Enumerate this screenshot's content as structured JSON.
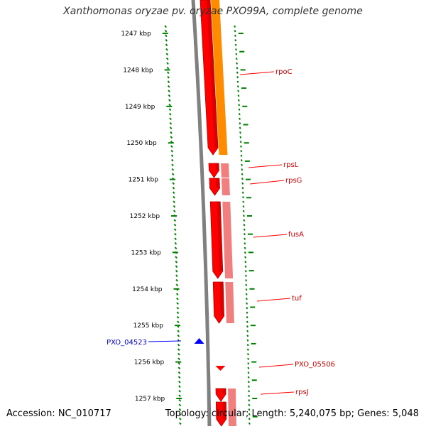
{
  "map": {
    "title": "Xanthomonas oryzae pv. oryzae PXO99A, complete genome",
    "accession": "Accession: NC_010717",
    "summary": "Topology: circular; Length: 5,240,075 bp; Genes: 5,048"
  },
  "ruler": {
    "ticks": [
      {
        "label": "1247 kbp",
        "kbp": 1247
      },
      {
        "label": "1248 kbp",
        "kbp": 1248
      },
      {
        "label": "1249 kbp",
        "kbp": 1249
      },
      {
        "label": "1250 kbp",
        "kbp": 1250
      },
      {
        "label": "1251 kbp",
        "kbp": 1251
      },
      {
        "label": "1252 kbp",
        "kbp": 1252
      },
      {
        "label": "1253 kbp",
        "kbp": 1253
      },
      {
        "label": "1254 kbp",
        "kbp": 1254
      },
      {
        "label": "1255 kbp",
        "kbp": 1255
      },
      {
        "label": "1256 kbp",
        "kbp": 1256
      },
      {
        "label": "1257 kbp",
        "kbp": 1257
      }
    ]
  },
  "genes": [
    {
      "name": "rpoC",
      "color": "#cc0000"
    },
    {
      "name": "rpsL",
      "color": "#cc0000"
    },
    {
      "name": "rpsG",
      "color": "#cc0000"
    },
    {
      "name": "fusA",
      "color": "#cc0000"
    },
    {
      "name": "tuf",
      "color": "#cc0000"
    },
    {
      "name": "PXO_05506",
      "color": "#cc0000"
    },
    {
      "name": "rpsJ",
      "color": "#cc0000"
    },
    {
      "name": "PXO_04523",
      "color": "#0000cc"
    }
  ],
  "colors": {
    "forward_cds": "#ff0000",
    "forward_cds_shade": "#b30000",
    "rrna_track": "#ff8c00",
    "conserved_track": "#f08080",
    "reverse_cds": "#0000ff",
    "backbone": "#808080",
    "tick_mark": "#008000",
    "label_line_red": "#ff0000",
    "label_line_blue": "#0000ff"
  }
}
